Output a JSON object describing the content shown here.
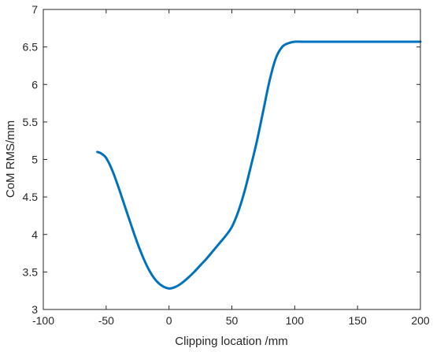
{
  "chart_data": {
    "type": "line",
    "title": "",
    "xlabel": "Clipping location /mm",
    "ylabel": "CoM RMS/mm",
    "xlim": [
      -100,
      200
    ],
    "ylim": [
      3,
      7
    ],
    "xticks": [
      -100,
      -50,
      0,
      50,
      100,
      150,
      200
    ],
    "yticks": [
      3,
      3.5,
      4,
      4.5,
      5,
      5.5,
      6,
      6.5,
      7
    ],
    "xtick_labels": [
      "-100",
      "-50",
      "0",
      "50",
      "100",
      "150",
      "200"
    ],
    "ytick_labels": [
      "3",
      "3.5",
      "4",
      "4.5",
      "5",
      "5.5",
      "6",
      "6.5",
      "7"
    ],
    "grid": false,
    "line_color": "#0072BD",
    "series": [
      {
        "x": [
          -57,
          -54,
          -50,
          -45,
          -40,
          -35,
          -30,
          -25,
          -20,
          -15,
          -10,
          -5,
          0,
          5,
          10,
          15,
          20,
          25,
          30,
          35,
          40,
          45,
          50,
          55,
          60,
          65,
          70,
          75,
          80,
          85,
          90,
          95,
          100,
          105,
          110,
          120,
          140,
          160,
          180,
          200
        ],
        "y": [
          5.1,
          5.08,
          5.02,
          4.85,
          4.62,
          4.37,
          4.12,
          3.88,
          3.67,
          3.5,
          3.38,
          3.31,
          3.28,
          3.3,
          3.35,
          3.42,
          3.5,
          3.59,
          3.68,
          3.78,
          3.88,
          3.98,
          4.1,
          4.3,
          4.57,
          4.9,
          5.25,
          5.65,
          6.05,
          6.35,
          6.5,
          6.55,
          6.57,
          6.57,
          6.57,
          6.57,
          6.57,
          6.57,
          6.57,
          6.57
        ]
      }
    ]
  }
}
